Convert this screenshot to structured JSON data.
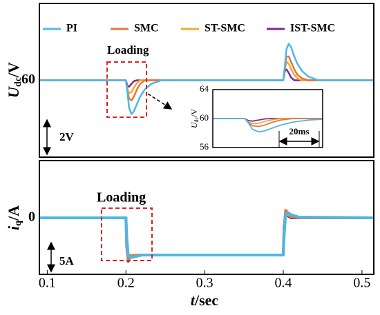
{
  "chart_data": [
    {
      "type": "line",
      "legend": "top",
      "ylabel": {
        "main": "U",
        "sub": "dc",
        "unit": "/V"
      },
      "x": [
        0.09,
        0.2,
        0.202,
        0.204,
        0.207,
        0.21,
        0.214,
        0.218,
        0.224,
        0.232,
        0.245,
        0.4,
        0.402,
        0.404,
        0.407,
        0.41,
        0.414,
        0.418,
        0.424,
        0.432,
        0.445,
        0.515
      ],
      "series": [
        {
          "name": "PI",
          "color": "#4cb8e6",
          "values": [
            60,
            60,
            59.3,
            58.5,
            58.15,
            58.3,
            58.7,
            59.1,
            59.5,
            59.8,
            60,
            60,
            60.8,
            61.7,
            62.0,
            61.8,
            61.3,
            60.9,
            60.5,
            60.2,
            60,
            60
          ]
        },
        {
          "name": "SMC",
          "color": "#e8743b",
          "values": [
            60,
            60,
            59.4,
            59.0,
            58.9,
            59.1,
            59.5,
            59.8,
            60,
            60,
            60,
            60,
            60.7,
            61.3,
            61.3,
            61.0,
            60.6,
            60.3,
            60.1,
            60,
            60,
            60
          ]
        },
        {
          "name": "ST-SMC",
          "color": "#f2aa2e",
          "values": [
            60,
            60,
            59.5,
            59.3,
            59.35,
            59.6,
            59.85,
            60,
            60,
            60,
            60,
            60,
            60.6,
            61.0,
            60.9,
            60.6,
            60.3,
            60.1,
            60,
            60,
            60,
            60
          ]
        },
        {
          "name": "IST-SMC",
          "color": "#7a2b8f",
          "values": [
            60,
            60,
            59.7,
            59.65,
            59.8,
            59.95,
            60,
            60,
            60,
            60,
            60,
            60,
            60.5,
            60.6,
            60.4,
            60.15,
            60,
            60,
            60,
            60,
            60,
            60
          ]
        }
      ],
      "xlim": [
        0.09,
        0.515
      ],
      "ylim": [
        55.8,
        64.2
      ],
      "yticks": [
        60
      ],
      "annotations": [
        "Loading",
        "2V"
      ]
    },
    {
      "type": "line",
      "ylabel": {
        "main": "U",
        "sub": "dc",
        "unit": "/V"
      },
      "x": [
        0.184,
        0.2,
        0.202,
        0.204,
        0.207,
        0.21,
        0.214,
        0.218,
        0.224,
        0.232,
        0.239
      ],
      "series": [
        {
          "color": "#4cb8e6",
          "values": [
            60,
            60,
            59.3,
            58.5,
            58.15,
            58.3,
            58.7,
            59.1,
            59.5,
            59.8,
            59.9
          ]
        },
        {
          "color": "#e8743b",
          "values": [
            60,
            60,
            59.4,
            59.0,
            58.9,
            59.1,
            59.5,
            59.8,
            60,
            60,
            60
          ]
        },
        {
          "color": "#f2aa2e",
          "values": [
            60,
            60,
            59.5,
            59.3,
            59.35,
            59.6,
            59.85,
            60,
            60,
            60,
            60
          ]
        },
        {
          "color": "#7a2b8f",
          "values": [
            60,
            60,
            59.7,
            59.65,
            59.8,
            59.95,
            60,
            60,
            60,
            60,
            60
          ]
        }
      ],
      "xlim": [
        0.184,
        0.239
      ],
      "ylim": [
        56,
        64
      ],
      "yticks": [
        56,
        60,
        64
      ],
      "annotations": [
        "20ms"
      ]
    },
    {
      "type": "line",
      "ylabel": {
        "main": "i",
        "sub": "q",
        "unit": "/A"
      },
      "xlabel": {
        "main": "t",
        "unit": "/sec"
      },
      "x": [
        0.09,
        0.2,
        0.201,
        0.203,
        0.206,
        0.21,
        0.22,
        0.4,
        0.401,
        0.403,
        0.406,
        0.41,
        0.42,
        0.515
      ],
      "series": [
        {
          "color": "#4cb8e6",
          "values": [
            0,
            0,
            -3,
            -6.2,
            -6.4,
            -6.3,
            -6.0,
            -6.0,
            -3,
            0.6,
            0.8,
            0.5,
            0.1,
            0
          ]
        },
        {
          "color": "#e8743b",
          "values": [
            0,
            0,
            -3.5,
            -6.6,
            -6.3,
            -6.1,
            -6.0,
            -6.0,
            -2.5,
            1.2,
            0.8,
            0.3,
            0,
            0
          ]
        },
        {
          "color": "#f2aa2e",
          "values": [
            0,
            0,
            -4,
            -6.8,
            -6.2,
            -6.0,
            -6.0,
            -6.0,
            -2,
            1.0,
            0.5,
            0.2,
            0,
            0
          ]
        },
        {
          "color": "#7a2b8f",
          "values": [
            0,
            0,
            -4.5,
            -7.0,
            -6.1,
            -6.0,
            -6.0,
            -6.0,
            -1.5,
            0.8,
            0.3,
            0,
            0,
            0
          ]
        }
      ],
      "xlim": [
        0.09,
        0.515
      ],
      "ylim": [
        -9.1,
        9.2
      ],
      "yticks": [
        0
      ],
      "xticks": [
        0.1,
        0.2,
        0.3,
        0.4,
        0.5
      ],
      "annotations": [
        "Loading",
        "5A"
      ]
    }
  ]
}
